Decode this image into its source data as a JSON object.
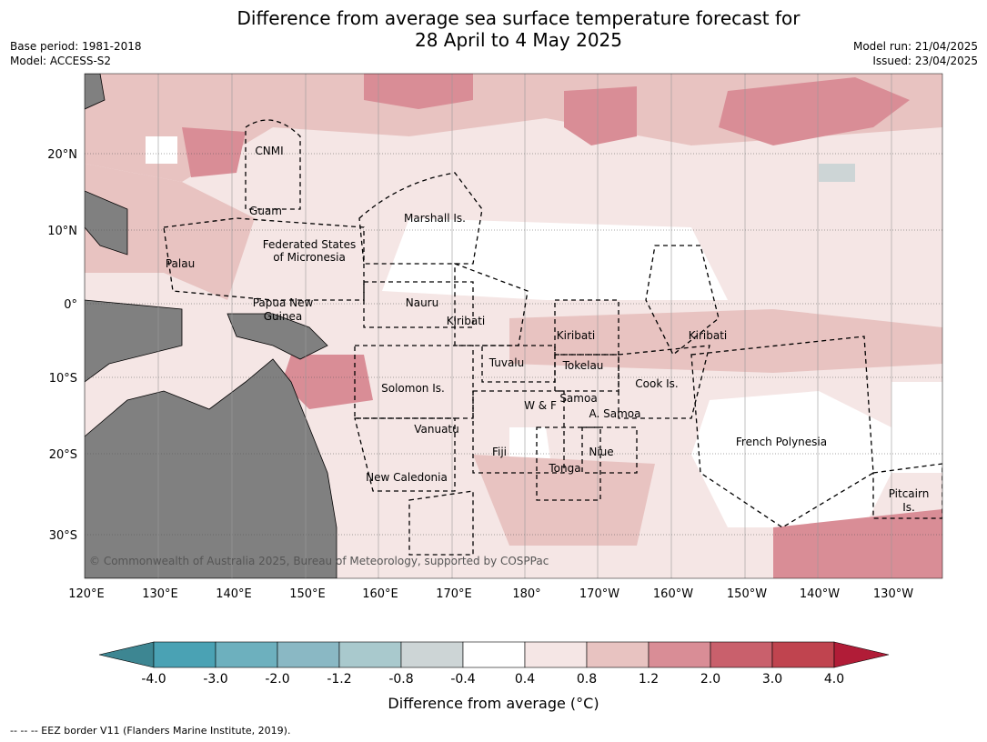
{
  "title_line1": "Difference from average sea surface temperature forecast for",
  "title_line2": "28 April to 4 May 2025",
  "meta_left": [
    "Base period: 1981-2018",
    "Model: ACCESS-S2"
  ],
  "meta_right": [
    "Model run: 21/04/2025",
    "Issued: 23/04/2025"
  ],
  "copyright": "© Commonwealth of Australia 2025, Bureau of Meteorology, supported by COSPPac",
  "lat_ticks": [
    "20°N",
    "10°N",
    "0°",
    "10°S",
    "20°S",
    "30°S"
  ],
  "lon_ticks": [
    "120°E",
    "130°E",
    "140°E",
    "150°E",
    "160°E",
    "170°E",
    "180°",
    "170°W",
    "160°W",
    "150°W",
    "140°W",
    "130°W"
  ],
  "regions": [
    "CNMI",
    "Guam",
    "Marshall Is.",
    "Federated States",
    "of Micronesia",
    "Palau",
    "Papua New",
    "Guinea",
    "Nauru",
    "Kiribati",
    "Kiribati",
    "Kiribati",
    "Tuvalu",
    "Tokelau",
    "Cook Is.",
    "Solomon Is.",
    "W & F",
    "Samoa",
    "A. Samoa",
    "Vanuatu",
    "Fiji",
    "Niue",
    "Tonga",
    "New Caledonia",
    "French Polynesia",
    "Pitcairn",
    "Is."
  ],
  "colorbar": {
    "labels": [
      "-4.0",
      "-3.0",
      "-2.0",
      "-1.2",
      "-0.8",
      "-0.4",
      "0.4",
      "0.8",
      "1.2",
      "2.0",
      "3.0",
      "4.0"
    ],
    "colors": [
      "#3d8692",
      "#4aa2b4",
      "#6db0be",
      "#8ab8c4",
      "#a9c9cd",
      "#cdd5d6",
      "#ffffff",
      "#f5e6e5",
      "#e8c3c1",
      "#d98d96",
      "#c9606c",
      "#c0444f",
      "#b11c37"
    ],
    "title": "Difference from average (°C)"
  },
  "legend_note": "--  --  -- EEZ border V11 (Flanders Marine Institute, 2019).",
  "colors": {
    "land": "#808080",
    "eez": "#000000",
    "grid": "#999999"
  }
}
